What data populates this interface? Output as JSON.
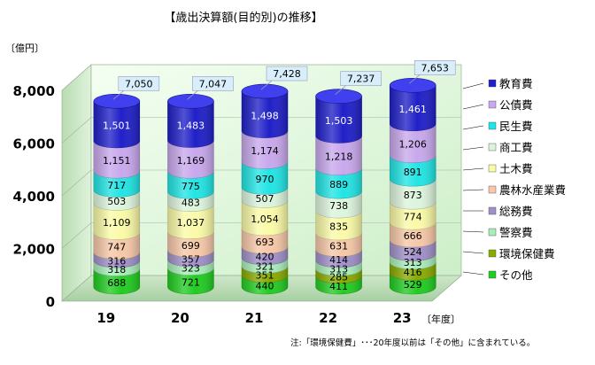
{
  "chart_data": {
    "type": "bar",
    "stacked": true,
    "title": "【歳出決算額(目的別)の推移】",
    "ylabel": "〔億円〕",
    "xlabel": "〔年度〕",
    "ylim": [
      0,
      8000
    ],
    "y_ticks": [
      "0",
      "2,000",
      "4,000",
      "6,000",
      "8,000"
    ],
    "categories": [
      "19",
      "20",
      "21",
      "22",
      "23"
    ],
    "totals": [
      7050,
      7047,
      7428,
      7237,
      7653
    ],
    "total_labels": [
      "7,050",
      "7,047",
      "7,428",
      "7,237",
      "7,653"
    ],
    "series": [
      {
        "name": "その他",
        "color": "#22cc22",
        "values": [
          688,
          721,
          440,
          411,
          529
        ],
        "labels": [
          "688",
          "721",
          "440",
          "411",
          "529"
        ]
      },
      {
        "name": "環境保健費",
        "color": "#88aa00",
        "values": [
          0,
          0,
          351,
          285,
          416
        ],
        "labels": [
          "",
          "",
          "351",
          "285",
          "416"
        ]
      },
      {
        "name": "警察費",
        "color": "#a8ecb8",
        "values": [
          318,
          323,
          321,
          313,
          313
        ],
        "labels": [
          "318",
          "323",
          "321",
          "313",
          "313"
        ]
      },
      {
        "name": "総務費",
        "color": "#a090c8",
        "values": [
          316,
          357,
          420,
          414,
          524
        ],
        "labels": [
          "316",
          "357",
          "420",
          "414",
          "524"
        ]
      },
      {
        "name": "農林水産業費",
        "color": "#f6c8a8",
        "values": [
          747,
          699,
          693,
          631,
          666
        ],
        "labels": [
          "747",
          "699",
          "693",
          "631",
          "666"
        ]
      },
      {
        "name": "土木費",
        "color": "#fafaa8",
        "values": [
          1109,
          1037,
          1054,
          835,
          774
        ],
        "labels": [
          "1,109",
          "1,037",
          "1,054",
          "835",
          "774"
        ]
      },
      {
        "name": "商工費",
        "color": "#dcf4dc",
        "values": [
          503,
          483,
          507,
          738,
          873
        ],
        "labels": [
          "503",
          "483",
          "507",
          "738",
          "873"
        ]
      },
      {
        "name": "民生費",
        "color": "#22e4e4",
        "values": [
          717,
          775,
          970,
          889,
          891
        ],
        "labels": [
          "717",
          "775",
          "970",
          "889",
          "891"
        ]
      },
      {
        "name": "公債費",
        "color": "#c8a8ec",
        "values": [
          1151,
          1169,
          1174,
          1218,
          1206
        ],
        "labels": [
          "1,151",
          "1,169",
          "1,174",
          "1,218",
          "1,206"
        ]
      },
      {
        "name": "教育費",
        "color": "#2020c8",
        "values": [
          1501,
          1483,
          1498,
          1503,
          1461
        ],
        "labels": [
          "1,501",
          "1,483",
          "1,498",
          "1,503",
          "1,461"
        ]
      }
    ],
    "legend_order": [
      "教育費",
      "公債費",
      "民生費",
      "商工費",
      "土木費",
      "農林水産業費",
      "総務費",
      "警察費",
      "環境保健費",
      "その他"
    ],
    "legend_position": "right",
    "grid": true,
    "note": "注:「環境保健費」･･･20年度以前は「その他」に含まれている。"
  }
}
